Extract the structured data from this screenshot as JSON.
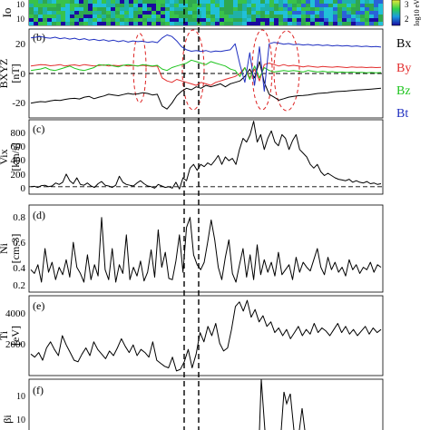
{
  "chart_data": [
    {
      "panel": "spectrogram",
      "type": "heatmap",
      "ylabel": "Io",
      "y_ticks": [
        "10",
        "10"
      ],
      "colorbar": {
        "label": "log10 eV",
        "ticks": [
          "3",
          "2"
        ]
      }
    },
    {
      "panel": "b",
      "type": "line",
      "label": "(b)",
      "ylabel": "BXYZ",
      "yunit": "[nT]",
      "ylim": [
        -30,
        30
      ],
      "y_ticks": [
        "20",
        "0",
        "-20"
      ],
      "zero_line": true,
      "legend": {
        "placement": "right",
        "entries": [
          "Bx",
          "By",
          "Bz",
          "Bt"
        ]
      },
      "series": [
        {
          "name": "Bx",
          "color": "#000000",
          "values": [
            -20,
            -19.5,
            -19,
            -19.2,
            -18.5,
            -18,
            -18.2,
            -17.5,
            -17,
            -16.8,
            -17.2,
            -16,
            -15.5,
            -17,
            -16,
            -15.2,
            -14,
            -14.5,
            -15,
            -14.2,
            -13.5,
            -14,
            -13.8,
            -13,
            -13.5,
            -14.5,
            -14,
            -22,
            -24,
            -20,
            -15,
            -12,
            -10,
            -11,
            -9,
            -10,
            -8,
            -9,
            -8,
            -7,
            -9,
            -7,
            -6,
            -5,
            -2,
            3,
            -3,
            8,
            -6,
            -14,
            -16,
            -18,
            -17,
            -16,
            -15.5,
            -15,
            -14.8,
            -14.5,
            -14,
            -13.5,
            -13.2,
            -13,
            -12.5,
            -12.2,
            -12,
            -11.8,
            -11.5,
            -11.2,
            -11,
            -10.8,
            -10.5,
            -10.2,
            -10
          ]
        },
        {
          "name": "By",
          "color": "#e32d2d",
          "values": [
            5,
            5.5,
            6,
            5.8,
            5.2,
            5.5,
            6,
            5,
            5.5,
            5.8,
            5.2,
            6,
            5.5,
            5,
            5.3,
            5.8,
            5,
            5.5,
            5.2,
            5.6,
            5,
            5.4,
            5.1,
            5.5,
            5.2,
            4.8,
            5,
            -3,
            -5,
            -6,
            -4,
            -5,
            -6,
            -7,
            -8,
            -6,
            -7,
            -8,
            -6,
            -5,
            -4,
            -3,
            -2,
            0,
            4,
            -3,
            3,
            -5,
            6,
            7,
            6,
            5,
            6,
            5,
            5.5,
            5,
            4.5,
            5,
            4.6,
            4.2,
            4.8,
            4.5,
            4.2,
            4.6,
            4.3,
            4,
            4.4,
            4.1,
            4.3,
            4,
            4.2,
            4,
            4.1
          ]
        },
        {
          "name": "Bz",
          "color": "#1ec41e",
          "values": [
            2,
            2.5,
            3,
            4,
            2.5,
            2,
            3,
            4,
            5,
            3.5,
            2.5,
            2,
            3,
            4,
            6,
            5.5,
            6,
            5,
            4.5,
            5.5,
            6,
            5.5,
            5,
            6,
            5.5,
            5,
            5.5,
            3,
            2,
            4,
            5,
            6,
            7,
            9,
            8,
            7,
            6,
            8,
            7,
            6,
            5,
            3,
            2,
            -2,
            4,
            -4,
            5,
            -3,
            4,
            2,
            1,
            1.5,
            2,
            1.5,
            2,
            1.5,
            1,
            2,
            1.5,
            1,
            1.5,
            1,
            1.2,
            0.8,
            1,
            0.7,
            1,
            0.6,
            0.8,
            0.5,
            0.7,
            0.5,
            0.6
          ]
        },
        {
          "name": "Bt",
          "color": "#1f2fc0",
          "values": [
            24,
            24.5,
            25,
            24.2,
            23.8,
            24.5,
            23.5,
            24,
            23.2,
            23.8,
            22.8,
            23.5,
            22.5,
            23,
            22.2,
            22.8,
            21.8,
            22.5,
            21.5,
            22.2,
            21.2,
            22,
            21.5,
            21.8,
            21,
            21.5,
            20.8,
            24,
            26,
            25,
            22,
            18,
            16,
            15,
            15.5,
            14.8,
            15.5,
            14.5,
            15.2,
            14.8,
            15.5,
            16,
            20,
            6,
            -6,
            14,
            -8,
            18,
            -12,
            20,
            21,
            20.5,
            19.8,
            20.2,
            19.5,
            19.8,
            19.2,
            19.6,
            19,
            19.4,
            18.8,
            19.2,
            18.6,
            19,
            18.5,
            18.8,
            18.3,
            18.6,
            18.1,
            18.4,
            18,
            18.2,
            17.8
          ]
        }
      ]
    },
    {
      "panel": "c",
      "type": "line",
      "label": "(c)",
      "ylabel": "Vix",
      "yunit": "[km/s]",
      "ylim": [
        -100,
        900
      ],
      "y_ticks": [
        "800",
        "600",
        "400",
        "200",
        "0"
      ],
      "zero_line": true,
      "series": [
        {
          "name": "Vix",
          "color": "#000000",
          "values": [
            0,
            5,
            -10,
            15,
            20,
            0,
            10,
            50,
            30,
            60,
            170,
            80,
            40,
            120,
            30,
            20,
            50,
            10,
            -10,
            40,
            70,
            20,
            10,
            -10,
            20,
            140,
            60,
            30,
            20,
            10,
            50,
            80,
            40,
            10,
            0,
            -20,
            30,
            10,
            -10,
            0,
            -20,
            60,
            -30,
            120,
            80,
            250,
            300,
            220,
            300,
            270,
            320,
            290,
            350,
            420,
            300,
            400,
            350,
            380,
            300,
            500,
            650,
            600,
            700,
            880,
            600,
            700,
            500,
            650,
            750,
            600,
            550,
            700,
            650,
            500,
            620,
            700,
            500,
            450,
            400,
            300,
            250,
            300,
            200,
            150,
            180,
            150,
            120,
            100,
            90,
            80,
            100,
            60,
            80,
            60,
            50,
            70,
            40,
            50,
            30,
            40
          ]
        }
      ]
    },
    {
      "panel": "d",
      "type": "line",
      "label": "(d)",
      "ylabel": "Ni",
      "yunit": "[cm-3]",
      "ylim": [
        0.2,
        0.9
      ],
      "y_ticks": [
        "0.8",
        "0.6",
        "0.4",
        "0.2"
      ],
      "series": [
        {
          "name": "Ni",
          "color": "#000000",
          "values": [
            0.38,
            0.35,
            0.42,
            0.28,
            0.55,
            0.36,
            0.44,
            0.3,
            0.4,
            0.34,
            0.46,
            0.32,
            0.6,
            0.4,
            0.35,
            0.28,
            0.5,
            0.3,
            0.42,
            0.33,
            0.8,
            0.38,
            0.3,
            0.55,
            0.28,
            0.42,
            0.35,
            0.66,
            0.3,
            0.4,
            0.33,
            0.45,
            0.29,
            0.36,
            0.54,
            0.32,
            0.7,
            0.4,
            0.52,
            0.31,
            0.3,
            0.45,
            0.66,
            0.36,
            0.72,
            0.8,
            0.5,
            0.42,
            0.38,
            0.44,
            0.6,
            0.78,
            0.62,
            0.4,
            0.3,
            0.48,
            0.62,
            0.35,
            0.28,
            0.42,
            0.55,
            0.32,
            0.5,
            0.3,
            0.58,
            0.34,
            0.46,
            0.36,
            0.44,
            0.33,
            0.52,
            0.34,
            0.38,
            0.42,
            0.3,
            0.48,
            0.36,
            0.44,
            0.4,
            0.37,
            0.46,
            0.55,
            0.4,
            0.34,
            0.48,
            0.38,
            0.44,
            0.36,
            0.4,
            0.33,
            0.46,
            0.38,
            0.42,
            0.35,
            0.4,
            0.38,
            0.44,
            0.36,
            0.42,
            0.4
          ]
        }
      ]
    },
    {
      "panel": "e",
      "type": "line",
      "label": "(e)",
      "ylabel": "Ti",
      "yunit": "[eV]",
      "ylim": [
        0,
        5200
      ],
      "y_ticks": [
        "4000",
        "2000"
      ],
      "series": [
        {
          "name": "Ti",
          "color": "#000000",
          "values": [
            1400,
            1200,
            1500,
            1000,
            1800,
            2200,
            1700,
            1300,
            2600,
            2000,
            1500,
            1000,
            900,
            1400,
            1800,
            1300,
            2200,
            1700,
            1400,
            1100,
            1600,
            1300,
            1800,
            2400,
            1900,
            1500,
            2000,
            1300,
            1700,
            1500,
            1200,
            2200,
            1000,
            800,
            600,
            500,
            1200,
            300,
            400,
            900,
            1700,
            500,
            1400,
            2800,
            2200,
            3200,
            2600,
            3400,
            2100,
            1600,
            1800,
            3000,
            4500,
            4800,
            4200,
            4900,
            3800,
            4300,
            3500,
            3900,
            3200,
            3500,
            2800,
            3100,
            2600,
            3000,
            2400,
            2800,
            3200,
            2600,
            3000,
            2700,
            3400,
            2800,
            3100,
            2900,
            2600,
            3000,
            3400,
            2800,
            3200,
            2700,
            3000,
            2600,
            2900,
            3200,
            2700,
            3100,
            2800,
            3000
          ]
        }
      ]
    },
    {
      "panel": "f",
      "type": "line",
      "label": "(f)",
      "ylabel": "βi",
      "y_ticks": [
        "10",
        "10"
      ],
      "series": []
    }
  ],
  "marker_lines": [
    "dashed vertical lines marking boundary times across all panels"
  ]
}
